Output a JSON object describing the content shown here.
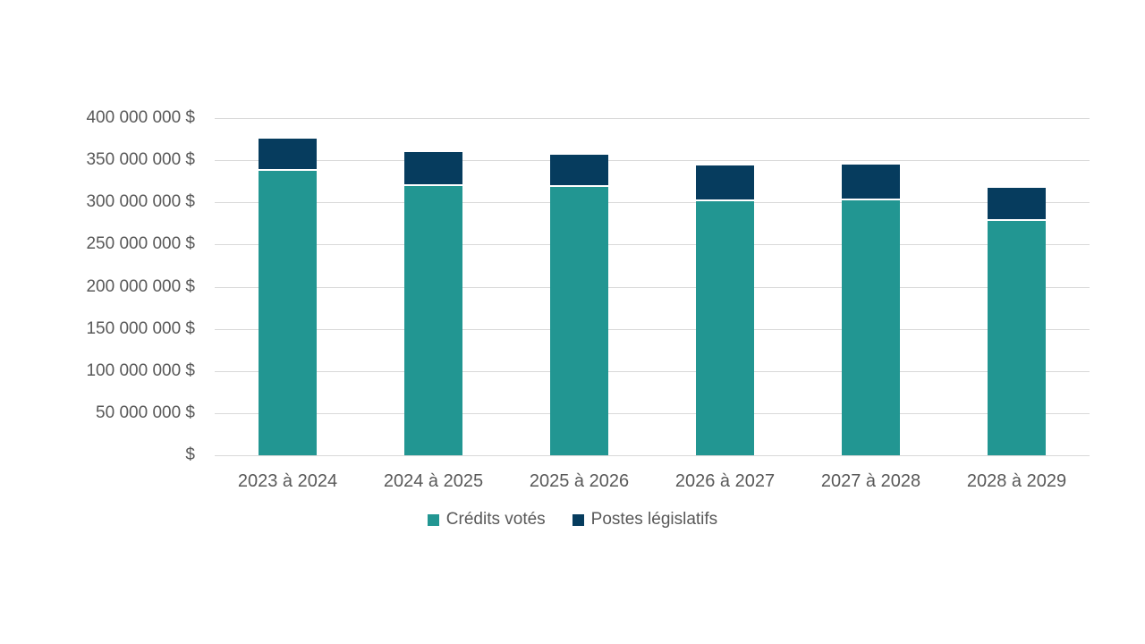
{
  "page": {
    "background_color": "#ffffff",
    "text_color": "#595959",
    "gridline_color": "#D9D9D9"
  },
  "chart_data": {
    "type": "bar",
    "stacked": true,
    "title": "",
    "xlabel": "",
    "ylabel": "",
    "categories": [
      "2023 à 2024",
      "2024 à 2025",
      "2025 à 2026",
      "2026 à 2027",
      "2027 à 2028",
      "2028 à 2029"
    ],
    "series": [
      {
        "name": "Crédits votés",
        "color": "#229692",
        "values": [
          340000000,
          321000000,
          320000000,
          303000000,
          305000000,
          280000000
        ]
      },
      {
        "name": "Postes législatifs",
        "color": "#063C5E",
        "values": [
          36000000,
          39000000,
          37000000,
          41000000,
          40000000,
          37000000
        ]
      }
    ],
    "ylim": [
      0,
      400000000
    ],
    "ytick_step": 50000000,
    "ytick_labels": [
      "$",
      "50 000 000 $",
      "100 000 000 $",
      "150 000 000 $",
      "200 000 000 $",
      "250 000 000 $",
      "300 000 000 $",
      "350 000 000 $",
      "400 000 000 $"
    ],
    "grid": true,
    "legend_position": "bottom"
  }
}
